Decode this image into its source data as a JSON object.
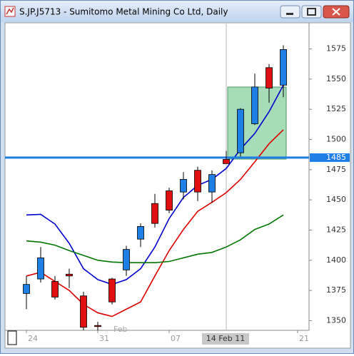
{
  "chart_data": {
    "type": "candlestick",
    "title": "S.JP.J5713 - Sumitomo Metal Mining Co Ltd, Daily",
    "up_color": "#1e80e6",
    "down_color": "#e01010",
    "open": [
      1372.5,
      1384.5,
      1382.5,
      1388.5,
      1370.5,
      1346,
      1384.5,
      1392,
      1417.5,
      1447,
      1457.5,
      1456.5,
      1474.5,
      1456.5,
      1483.5,
      1489,
      1513,
      1559.5,
      1545
    ],
    "high": [
      1387,
      1411,
      1387,
      1393,
      1374,
      1349,
      1385.5,
      1412,
      1430.5,
      1455,
      1460,
      1473,
      1477.5,
      1474.5,
      1490.5,
      1526,
      1554.5,
      1562.5,
      1578
    ],
    "low": [
      1359.5,
      1381.5,
      1367.5,
      1377,
      1342,
      1342,
      1363.5,
      1387,
      1411,
      1427,
      1439,
      1450.5,
      1449,
      1447.5,
      1480,
      1486,
      1512,
      1530.5,
      1535
    ],
    "close": [
      1380,
      1402,
      1369.5,
      1387,
      1344.5,
      1346,
      1365.5,
      1409,
      1428,
      1430.5,
      1441.5,
      1467,
      1456.5,
      1471,
      1480,
      1525,
      1543.5,
      1542.5,
      1574.5
    ],
    "overlays": [
      {
        "color": "#0000cc",
        "values": [
          1437.5,
          1438,
          1430,
          1414,
          1393,
          1384,
          1380,
          1384,
          1393,
          1411,
          1434.5,
          1452,
          1462,
          1467,
          1476,
          1492,
          1505,
          1523,
          1545
        ]
      },
      {
        "color": "#dd0000",
        "values": [
          1387,
          1390,
          1382.5,
          1375,
          1363.5,
          1356.5,
          1353.5,
          1359.5,
          1365.5,
          1387,
          1408,
          1425.5,
          1440.5,
          1448,
          1456,
          1467,
          1481.5,
          1496.5,
          1508
        ]
      },
      {
        "color": "#007700",
        "values": [
          1416,
          1415,
          1412.5,
          1408,
          1404,
          1400,
          1398.5,
          1398,
          1398,
          1398,
          1399,
          1402,
          1405,
          1406.5,
          1411,
          1417,
          1425.5,
          1430,
          1437.5
        ]
      }
    ],
    "ylim": [
      1342,
      1596
    ],
    "yticks": [
      1350,
      1375,
      1400,
      1425,
      1450,
      1475,
      1500,
      1525,
      1550,
      1575
    ],
    "xticks": [
      {
        "value": 0,
        "label": "24"
      },
      {
        "value": 5,
        "label": "31"
      },
      {
        "value": 10,
        "label": "07"
      },
      {
        "value": 19,
        "label": "21"
      }
    ],
    "month_label": {
      "value": 6,
      "label": "Feb"
    },
    "cursor": {
      "value": 14,
      "label": "14 Feb 11"
    },
    "hline": {
      "value": 1485,
      "label": "1485",
      "color": "#1e80e6"
    },
    "grid": false
  }
}
